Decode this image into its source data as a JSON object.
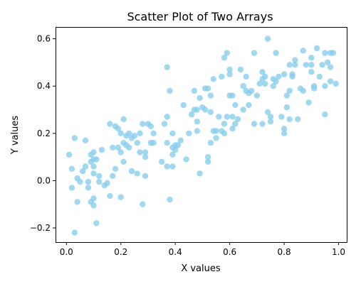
{
  "chart_data": {
    "type": "scatter",
    "title": "Scatter Plot of Two Arrays",
    "xlabel": "X values",
    "ylabel": "Y values",
    "xlim": [
      -0.04,
      1.03
    ],
    "ylim": [
      -0.26,
      0.65
    ],
    "xticks": [
      0.0,
      0.2,
      0.4,
      0.6,
      0.8,
      1.0
    ],
    "xtick_labels": [
      "0.0",
      "0.2",
      "0.4",
      "0.6",
      "0.8",
      "1.0"
    ],
    "yticks": [
      -0.2,
      0.0,
      0.2,
      0.4,
      0.6
    ],
    "ytick_labels": [
      "−0.2",
      "0.0",
      "0.2",
      "0.4",
      "0.6"
    ],
    "grid": false,
    "marker_color": "#87ceeb",
    "marker_alpha": 0.8,
    "series": [
      {
        "points": [
          [
            0.01,
            0.11
          ],
          [
            0.02,
            0.05
          ],
          [
            0.02,
            -0.03
          ],
          [
            0.03,
            0.18
          ],
          [
            0.03,
            -0.22
          ],
          [
            0.04,
            0.01
          ],
          [
            0.04,
            -0.09
          ],
          [
            0.05,
            -0.005
          ],
          [
            0.06,
            0.04
          ],
          [
            0.07,
            0.06
          ],
          [
            0.07,
            0.17
          ],
          [
            0.08,
            -0.005
          ],
          [
            0.08,
            -0.03
          ],
          [
            0.09,
            0.08
          ],
          [
            0.09,
            0.11
          ],
          [
            0.09,
            -0.09
          ],
          [
            0.1,
            0.12
          ],
          [
            0.1,
            0.09
          ],
          [
            0.1,
            0.06
          ],
          [
            0.1,
            0.03
          ],
          [
            0.1,
            -0.075
          ],
          [
            0.1,
            -0.105
          ],
          [
            0.11,
            -0.18
          ],
          [
            0.11,
            0.09
          ],
          [
            0.12,
            -0.005
          ],
          [
            0.12,
            0.02
          ],
          [
            0.13,
            0.13
          ],
          [
            0.14,
            -0.02
          ],
          [
            0.15,
            -0.01
          ],
          [
            0.16,
            0.24
          ],
          [
            0.16,
            -0.065
          ],
          [
            0.17,
            0.02
          ],
          [
            0.17,
            0.14
          ],
          [
            0.18,
            0.23
          ],
          [
            0.18,
            0.05
          ],
          [
            0.19,
            0.14
          ],
          [
            0.19,
            0.22
          ],
          [
            0.2,
            0.2
          ],
          [
            0.2,
            -0.07
          ],
          [
            0.2,
            0.12
          ],
          [
            0.21,
            0.26
          ],
          [
            0.21,
            0.16
          ],
          [
            0.21,
            0.08
          ],
          [
            0.22,
            0.15
          ],
          [
            0.22,
            0.19
          ],
          [
            0.23,
            0.2
          ],
          [
            0.23,
            0.14
          ],
          [
            0.24,
            0.18
          ],
          [
            0.24,
            0.04
          ],
          [
            0.25,
            0.19
          ],
          [
            0.26,
            0.03
          ],
          [
            0.26,
            0.16
          ],
          [
            0.27,
            0.12
          ],
          [
            0.27,
            0.2
          ],
          [
            0.28,
            -0.1
          ],
          [
            0.28,
            0.24
          ],
          [
            0.29,
            0.12
          ],
          [
            0.29,
            0.1
          ],
          [
            0.29,
            0.02
          ],
          [
            0.3,
            0.24
          ],
          [
            0.31,
            0.16
          ],
          [
            0.31,
            0.23
          ],
          [
            0.32,
            0.2
          ],
          [
            0.32,
            0.16
          ],
          [
            0.35,
            0.08
          ],
          [
            0.36,
            0.24
          ],
          [
            0.37,
            0.48
          ],
          [
            0.37,
            0.27
          ],
          [
            0.37,
            0.16
          ],
          [
            0.37,
            0.06
          ],
          [
            0.38,
            0.38
          ],
          [
            0.38,
            -0.08
          ],
          [
            0.39,
            0.2
          ],
          [
            0.39,
            0.14
          ],
          [
            0.39,
            0.11
          ],
          [
            0.39,
            0.06
          ],
          [
            0.4,
            0.15
          ],
          [
            0.4,
            0.13
          ],
          [
            0.41,
            0.15
          ],
          [
            0.42,
            0.17
          ],
          [
            0.43,
            0.32
          ],
          [
            0.44,
            0.09
          ],
          [
            0.45,
            0.2
          ],
          [
            0.46,
            0.28
          ],
          [
            0.47,
            0.38
          ],
          [
            0.47,
            0.3
          ],
          [
            0.48,
            0.21
          ],
          [
            0.48,
            0.25
          ],
          [
            0.48,
            0.3
          ],
          [
            0.49,
            0.35
          ],
          [
            0.49,
            0.03
          ],
          [
            0.5,
            0.31
          ],
          [
            0.51,
            0.39
          ],
          [
            0.51,
            0.3
          ],
          [
            0.52,
            0.39
          ],
          [
            0.52,
            0.1
          ],
          [
            0.52,
            0.08
          ],
          [
            0.53,
            0.29
          ],
          [
            0.53,
            0.16
          ],
          [
            0.53,
            0.36
          ],
          [
            0.54,
            0.43
          ],
          [
            0.54,
            0.21
          ],
          [
            0.55,
            0.18
          ],
          [
            0.55,
            0.21
          ],
          [
            0.56,
            0.27
          ],
          [
            0.57,
            0.44
          ],
          [
            0.57,
            0.21
          ],
          [
            0.58,
            0.2
          ],
          [
            0.58,
            0.24
          ],
          [
            0.58,
            0.52
          ],
          [
            0.59,
            0.54
          ],
          [
            0.59,
            0.27
          ],
          [
            0.6,
            0.36
          ],
          [
            0.6,
            0.45
          ],
          [
            0.6,
            0.47
          ],
          [
            0.61,
            0.36
          ],
          [
            0.61,
            0.27
          ],
          [
            0.61,
            0.22
          ],
          [
            0.62,
            0.32
          ],
          [
            0.62,
            0.24
          ],
          [
            0.63,
            0.26
          ],
          [
            0.64,
            0.47
          ],
          [
            0.65,
            0.4
          ],
          [
            0.65,
            0.3
          ],
          [
            0.66,
            0.44
          ],
          [
            0.66,
            0.38
          ],
          [
            0.67,
            0.37
          ],
          [
            0.67,
            0.32
          ],
          [
            0.68,
            0.38
          ],
          [
            0.69,
            0.54
          ],
          [
            0.69,
            0.24
          ],
          [
            0.7,
            0.36
          ],
          [
            0.71,
            0.41
          ],
          [
            0.72,
            0.46
          ],
          [
            0.72,
            0.43
          ],
          [
            0.72,
            0.24
          ],
          [
            0.73,
            0.44
          ],
          [
            0.73,
            0.41
          ],
          [
            0.74,
            0.29
          ],
          [
            0.74,
            0.6
          ],
          [
            0.75,
            0.27
          ],
          [
            0.75,
            0.25
          ],
          [
            0.76,
            0.4
          ],
          [
            0.76,
            0.43
          ],
          [
            0.77,
            0.54
          ],
          [
            0.77,
            0.42
          ],
          [
            0.78,
            0.44
          ],
          [
            0.79,
            0.27
          ],
          [
            0.8,
            0.45
          ],
          [
            0.8,
            0.22
          ],
          [
            0.8,
            0.2
          ],
          [
            0.81,
            0.36
          ],
          [
            0.81,
            0.31
          ],
          [
            0.82,
            0.38
          ],
          [
            0.82,
            0.49
          ],
          [
            0.82,
            0.26
          ],
          [
            0.83,
            0.44
          ],
          [
            0.83,
            0.45
          ],
          [
            0.84,
            0.49
          ],
          [
            0.84,
            0.51
          ],
          [
            0.85,
            0.26
          ],
          [
            0.86,
            0.39
          ],
          [
            0.87,
            0.38
          ],
          [
            0.87,
            0.55
          ],
          [
            0.88,
            0.49
          ],
          [
            0.89,
            0.33
          ],
          [
            0.9,
            0.52
          ],
          [
            0.9,
            0.49
          ],
          [
            0.9,
            0.46
          ],
          [
            0.91,
            0.4
          ],
          [
            0.91,
            0.39
          ],
          [
            0.92,
            0.56
          ],
          [
            0.93,
            0.44
          ],
          [
            0.94,
            0.49
          ],
          [
            0.95,
            0.28
          ],
          [
            0.95,
            0.4
          ],
          [
            0.95,
            0.54
          ],
          [
            0.96,
            0.5
          ],
          [
            0.97,
            0.48
          ],
          [
            0.97,
            0.54
          ],
          [
            0.97,
            0.42
          ],
          [
            0.98,
            0.54
          ],
          [
            0.99,
            0.41
          ]
        ]
      }
    ]
  }
}
